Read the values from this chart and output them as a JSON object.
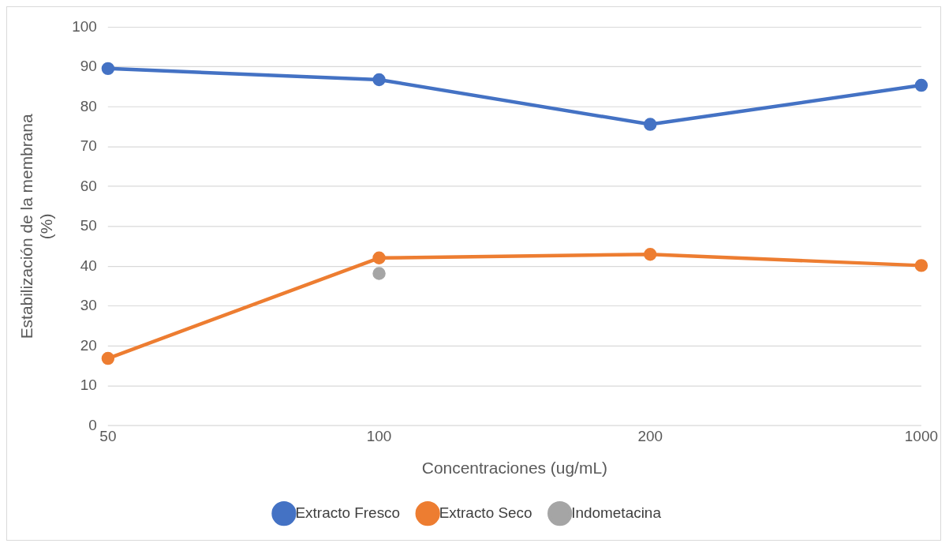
{
  "chart_data": {
    "type": "line",
    "xlabel": "Concentraciones (ug/mL)",
    "ylabel": "Estabilización de la membrana (%)",
    "categories": [
      "50",
      "100",
      "200",
      "1000"
    ],
    "series": [
      {
        "name": "Extracto Fresco",
        "color": "#4472c4",
        "values": [
          89.6,
          86.8,
          75.6,
          85.4
        ]
      },
      {
        "name": "Extracto Seco",
        "color": "#ed7d31",
        "values": [
          16.9,
          42.1,
          43.0,
          40.2
        ]
      },
      {
        "name": "Indometacina",
        "color": "#a5a5a5",
        "values": [
          null,
          38.2,
          null,
          null
        ]
      }
    ],
    "ylim": [
      0,
      100
    ],
    "yticks": [
      0,
      10,
      20,
      30,
      40,
      50,
      60,
      70,
      80,
      90,
      100
    ],
    "grid": "y",
    "legend": "bottom",
    "marker": "circle",
    "line_style": "solid"
  }
}
